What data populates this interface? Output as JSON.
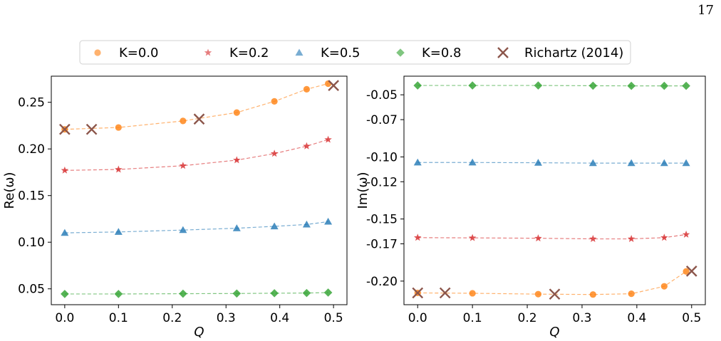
{
  "page_number": "17",
  "legend": {
    "entries": [
      {
        "label": "K=0.0",
        "marker": "circle",
        "color": "#ff7f0e"
      },
      {
        "label": "K=0.2",
        "marker": "star",
        "color": "#d62728"
      },
      {
        "label": "K=0.5",
        "marker": "triangle",
        "color": "#1f77b4"
      },
      {
        "label": "K=0.8",
        "marker": "diamond",
        "color": "#2ca02c"
      },
      {
        "label": "Richartz (2014)",
        "marker": "x",
        "color": "#8c564b"
      }
    ]
  },
  "chart_data": [
    {
      "type": "line",
      "xlabel": "Q",
      "ylabel": "Re(ω)",
      "xlim": [
        -0.025,
        0.525
      ],
      "ylim": [
        0.033,
        0.278
      ],
      "xticks": [
        0.0,
        0.1,
        0.2,
        0.3,
        0.4,
        0.5
      ],
      "xtick_labels": [
        "0.0",
        "0.1",
        "0.2",
        "0.3",
        "0.4",
        "0.5"
      ],
      "yticks": [
        0.05,
        0.1,
        0.15,
        0.2,
        0.25
      ],
      "ytick_labels": [
        "0.05",
        "0.10",
        "0.15",
        "0.20",
        "0.25"
      ],
      "series": [
        {
          "name": "K=0.0",
          "marker": "circle",
          "color": "#ff7f0e",
          "x": [
            0.0,
            0.1,
            0.22,
            0.32,
            0.39,
            0.45,
            0.49
          ],
          "y": [
            0.221,
            0.223,
            0.23,
            0.239,
            0.251,
            0.264,
            0.27
          ]
        },
        {
          "name": "K=0.2",
          "marker": "star",
          "color": "#d62728",
          "x": [
            0.0,
            0.1,
            0.22,
            0.32,
            0.39,
            0.45,
            0.49
          ],
          "y": [
            0.177,
            0.178,
            0.182,
            0.188,
            0.195,
            0.203,
            0.21
          ]
        },
        {
          "name": "K=0.5",
          "marker": "triangle",
          "color": "#1f77b4",
          "x": [
            0.0,
            0.1,
            0.22,
            0.32,
            0.39,
            0.45,
            0.49
          ],
          "y": [
            0.11,
            0.111,
            0.113,
            0.115,
            0.117,
            0.119,
            0.122
          ]
        },
        {
          "name": "K=0.8",
          "marker": "diamond",
          "color": "#2ca02c",
          "x": [
            0.0,
            0.1,
            0.22,
            0.32,
            0.39,
            0.45,
            0.49
          ],
          "y": [
            0.0445,
            0.0445,
            0.0448,
            0.045,
            0.0453,
            0.0455,
            0.046
          ]
        },
        {
          "name": "Richartz (2014)",
          "marker": "x",
          "color": "#8c564b",
          "x": [
            0.0,
            0.05,
            0.25,
            0.5
          ],
          "y": [
            0.221,
            0.221,
            0.232,
            0.268
          ]
        }
      ]
    },
    {
      "type": "line",
      "xlabel": "Q",
      "ylabel": "Im(ω)",
      "xlim": [
        -0.025,
        0.525
      ],
      "ylim": [
        -0.219,
        -0.035
      ],
      "xticks": [
        0.0,
        0.1,
        0.2,
        0.3,
        0.4,
        0.5
      ],
      "xtick_labels": [
        "0.0",
        "0.1",
        "0.2",
        "0.3",
        "0.4",
        "0.5"
      ],
      "yticks": [
        -0.05,
        -0.07,
        -0.1,
        -0.12,
        -0.15,
        -0.17,
        -0.2
      ],
      "ytick_labels": [
        "-0.05",
        "-0.07",
        "-0.10",
        "-0.12",
        "-0.15",
        "-0.17",
        "-0.20"
      ],
      "series": [
        {
          "name": "K=0.0",
          "marker": "circle",
          "color": "#ff7f0e",
          "x": [
            0.0,
            0.1,
            0.22,
            0.32,
            0.39,
            0.45,
            0.49
          ],
          "y": [
            -0.2095,
            -0.2098,
            -0.2105,
            -0.2108,
            -0.2102,
            -0.2042,
            -0.1922
          ]
        },
        {
          "name": "K=0.2",
          "marker": "star",
          "color": "#d62728",
          "x": [
            0.0,
            0.1,
            0.22,
            0.32,
            0.39,
            0.45,
            0.49
          ],
          "y": [
            -0.165,
            -0.1652,
            -0.1655,
            -0.166,
            -0.166,
            -0.165,
            -0.1625
          ]
        },
        {
          "name": "K=0.5",
          "marker": "triangle",
          "color": "#1f77b4",
          "x": [
            0.0,
            0.1,
            0.22,
            0.32,
            0.39,
            0.45,
            0.49
          ],
          "y": [
            -0.1045,
            -0.1045,
            -0.1047,
            -0.105,
            -0.105,
            -0.105,
            -0.105
          ]
        },
        {
          "name": "K=0.8",
          "marker": "diamond",
          "color": "#2ca02c",
          "x": [
            0.0,
            0.1,
            0.22,
            0.32,
            0.39,
            0.45,
            0.49
          ],
          "y": [
            -0.0425,
            -0.0425,
            -0.0425,
            -0.0427,
            -0.0428,
            -0.0428,
            -0.0428
          ]
        },
        {
          "name": "Richartz (2014)",
          "marker": "x",
          "color": "#8c564b",
          "x": [
            0.0,
            0.05,
            0.25,
            0.5
          ],
          "y": [
            -0.2095,
            -0.2095,
            -0.2105,
            -0.192
          ]
        }
      ]
    }
  ]
}
